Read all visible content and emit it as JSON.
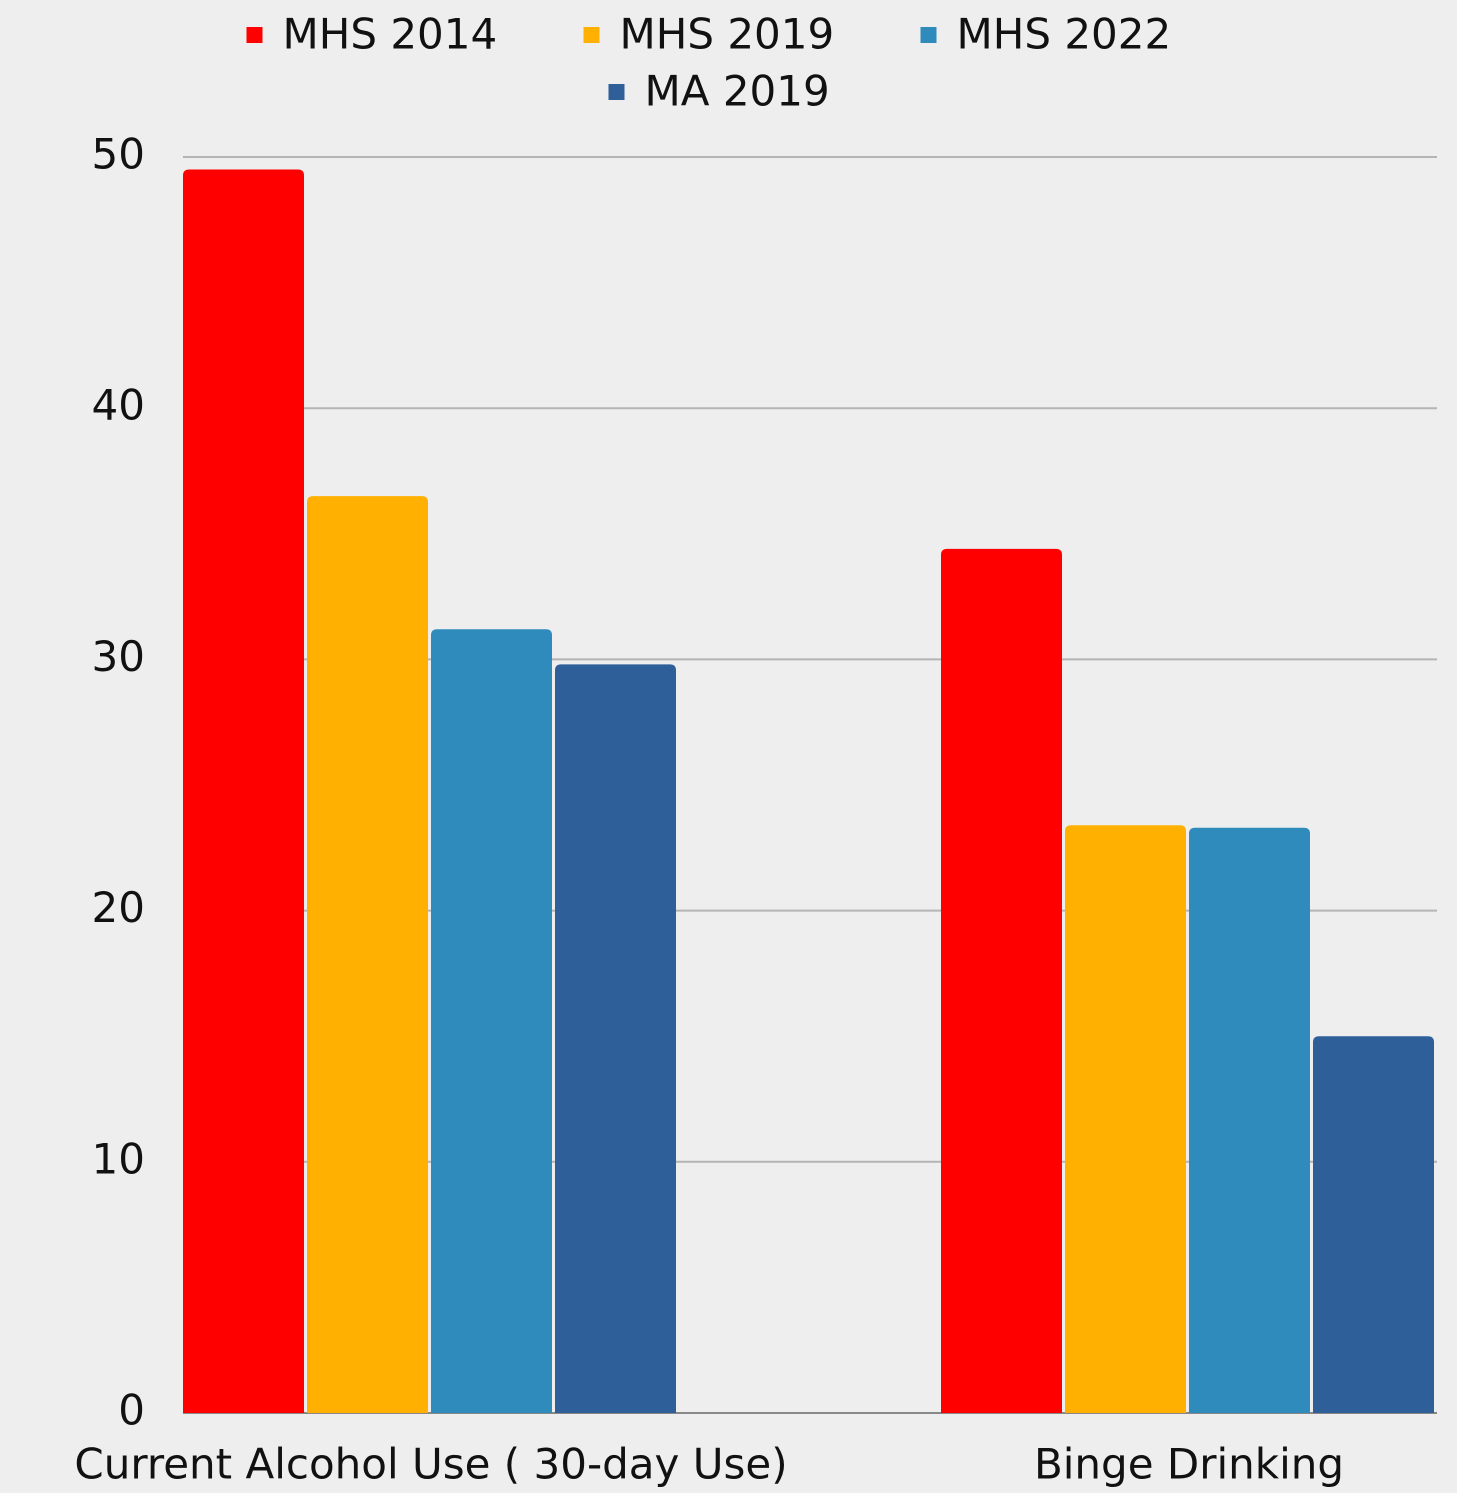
{
  "chart_data": {
    "type": "bar",
    "categories": [
      "Current Alcohol Use ( 30-day Use)",
      "Binge Drinking"
    ],
    "series": [
      {
        "name": "MHS 2014",
        "color": "#ff0000",
        "values": [
          49.5,
          34.4
        ]
      },
      {
        "name": "MHS 2019",
        "color": "#ffb000",
        "values": [
          36.5,
          23.4
        ]
      },
      {
        "name": "MHS 2022",
        "color": "#2e8bbb",
        "values": [
          31.2,
          23.3
        ]
      },
      {
        "name": "MA 2019",
        "color": "#2e5f98",
        "values": [
          29.8,
          15.0
        ]
      }
    ],
    "ylim": [
      0,
      50
    ],
    "yticks": [
      0,
      10,
      20,
      30,
      40,
      50
    ],
    "grid": true,
    "legend": "top"
  }
}
